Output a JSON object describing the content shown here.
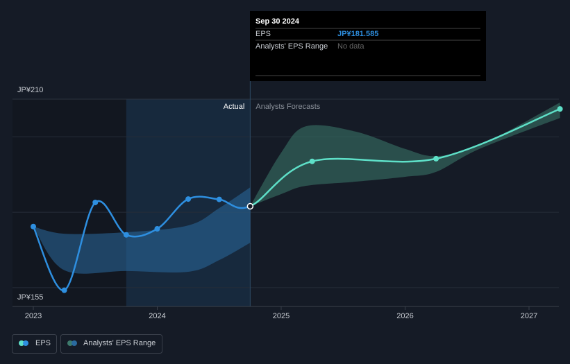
{
  "chart_data": {
    "type": "line",
    "xlim": [
      2022.832,
      2027.241
    ],
    "xticks": [
      2023,
      2024,
      2025,
      2026,
      2027
    ],
    "ylim": [
      155,
      210
    ],
    "yticks": [
      {
        "value": 155,
        "label": "JP¥155"
      },
      {
        "value": 210,
        "label": "JP¥210"
      }
    ],
    "grid_lines": [
      160,
      180,
      200
    ],
    "actual_label": "Actual",
    "forecast_label": "Analysts Forecasts",
    "series": [
      {
        "name": "EPS",
        "color": "#2e8fe0",
        "x": [
          2023.0,
          2023.25,
          2023.5,
          2023.75,
          2024.0,
          2024.25,
          2024.5,
          2024.75,
          2025.25,
          2026.25,
          2027.25
        ],
        "values": [
          176.2,
          159.3,
          182.6,
          174.0,
          175.6,
          183.5,
          183.4,
          181.585,
          193.5,
          194.2,
          207.4
        ],
        "point_colors": [
          "#2e8fe0",
          "#2e8fe0",
          "#2e8fe0",
          "#2e8fe0",
          "#2e8fe0",
          "#2e8fe0",
          "#2e8fe0",
          "#2e8fe0",
          "#5ee0c8",
          "#5ee0c8",
          "#5ee0c8"
        ]
      }
    ],
    "range": {
      "name": "Analysts' EPS Range",
      "color": "#3c6e8c",
      "pieces": [
        {
          "color": "#2a6a9e",
          "x": [
            2023.0,
            2023.25,
            2023.75,
            2024.25,
            2024.5,
            2024.75
          ],
          "high": [
            176.2,
            174.3,
            174.7,
            176.5,
            181.1,
            186.6
          ],
          "low": [
            176.2,
            164.6,
            164.4,
            164.2,
            167.3,
            171.9
          ]
        },
        {
          "color": "#3d7a6c",
          "x": [
            2024.75,
            2025.0,
            2025.2,
            2025.6,
            2026.0,
            2026.25,
            2026.6,
            2027.25
          ],
          "high": [
            181.6,
            195.8,
            202.8,
            201.4,
            196.8,
            194.9,
            197.7,
            209.1
          ],
          "low": [
            181.6,
            184.8,
            187.0,
            188.1,
            189.4,
            190.7,
            196.8,
            205.0
          ]
        }
      ]
    },
    "tooltip": {
      "date": "Sep 30 2024",
      "rows": [
        [
          "EPS",
          "JP¥181.585"
        ],
        [
          "Analysts' EPS Range",
          "No data"
        ]
      ]
    }
  }
}
